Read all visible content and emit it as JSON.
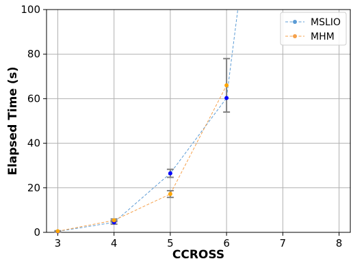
{
  "chart_data": {
    "type": "line",
    "title": "",
    "xlabel": "CCROSS",
    "ylabel": "Elapsed Time (s)",
    "xlim": [
      2.8,
      8.2
    ],
    "ylim": [
      0,
      100
    ],
    "x_ticks": [
      3,
      4,
      5,
      6,
      7,
      8
    ],
    "y_ticks": [
      0,
      20,
      40,
      60,
      80,
      100
    ],
    "grid": true,
    "legend_position": "top-right",
    "series": [
      {
        "name": "MSLIO",
        "color": "#5b9bd5",
        "marker_color": "#0000ff",
        "linestyle": "dashed",
        "points": [
          {
            "x": 3,
            "y": 0.4,
            "err": 0.2
          },
          {
            "x": 4,
            "y": 4.5,
            "err": 0.8
          },
          {
            "x": 5,
            "y": 26.5,
            "err": 1.8
          },
          {
            "x": 6,
            "y": 60.3,
            "err": 0
          },
          {
            "x": 6.2,
            "y": 100,
            "err": 0
          }
        ]
      },
      {
        "name": "MHM",
        "color": "#f5a04a",
        "marker_color": "#ffa500",
        "linestyle": "dashed",
        "points": [
          {
            "x": 3,
            "y": 0.5,
            "err": 0.2
          },
          {
            "x": 4,
            "y": 5.4,
            "err": 0.6
          },
          {
            "x": 5,
            "y": 17.2,
            "err": 1.5
          },
          {
            "x": 6,
            "y": 66.0,
            "err": 12.0
          }
        ]
      }
    ]
  }
}
